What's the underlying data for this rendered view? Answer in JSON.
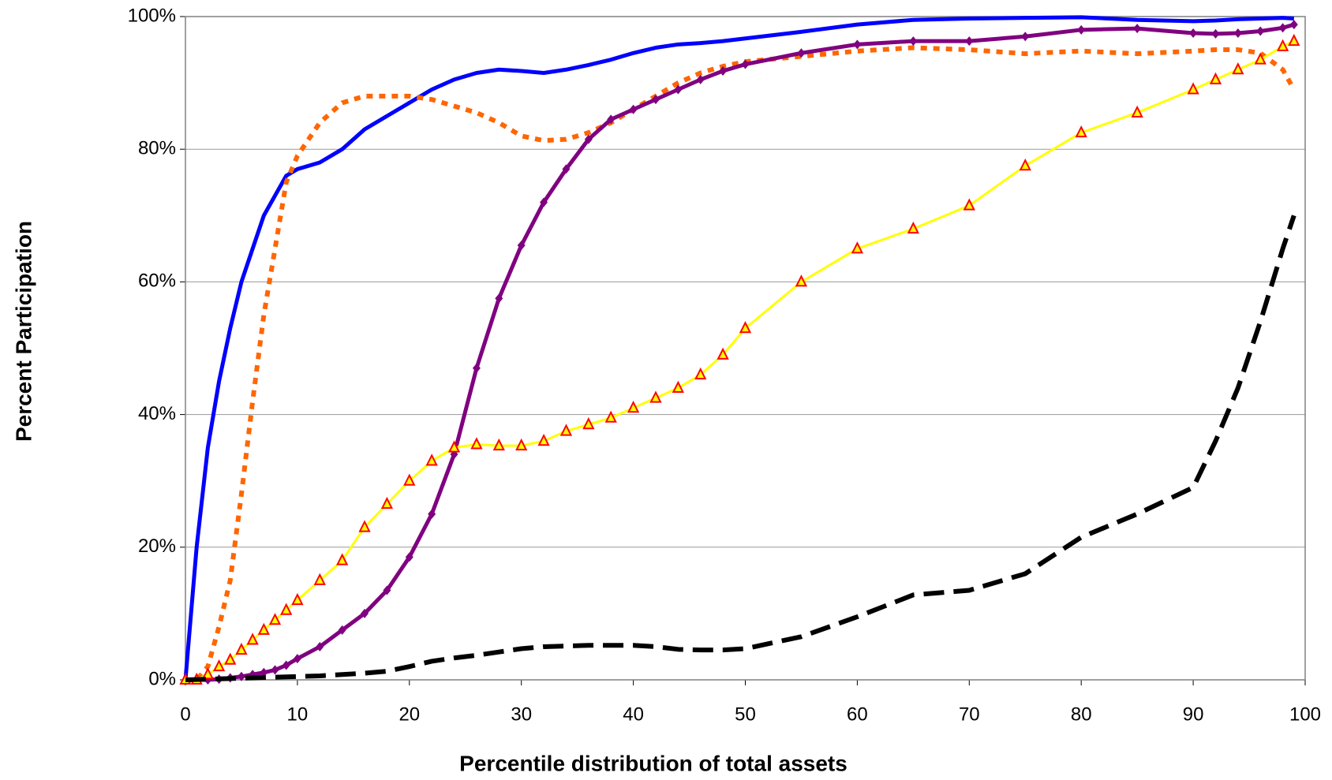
{
  "chart_data": {
    "type": "line",
    "x_label": "Percentile distribution of total assets",
    "y_label": "Percent Participation",
    "x": [
      0,
      1,
      2,
      3,
      4,
      5,
      6,
      7,
      8,
      9,
      10,
      12,
      14,
      16,
      18,
      20,
      22,
      24,
      26,
      28,
      30,
      32,
      34,
      36,
      38,
      40,
      42,
      44,
      46,
      48,
      50,
      55,
      60,
      65,
      70,
      75,
      80,
      85,
      90,
      92,
      94,
      96,
      98,
      99
    ],
    "series": [
      {
        "color": "#0000ff",
        "style": "solid",
        "values": [
          0,
          20,
          35,
          45,
          53,
          60,
          65,
          70,
          73,
          76,
          77,
          78,
          80,
          83,
          85,
          87,
          89,
          90.5,
          91.5,
          92,
          91.8,
          91.5,
          92,
          92.7,
          93.5,
          94.5,
          95.3,
          95.8,
          96,
          96.3,
          96.7,
          97.7,
          98.8,
          99.5,
          99.7,
          99.8,
          99.9,
          99.5,
          99.3,
          99.4,
          99.6,
          99.7,
          99.8,
          99.7
        ]
      },
      {
        "color": "#ff6600",
        "style": "dotted",
        "values": [
          0,
          0,
          2,
          8,
          15,
          28,
          42,
          55,
          65,
          75,
          79,
          84,
          87,
          88,
          88,
          88,
          87.5,
          86.5,
          85.5,
          84,
          82,
          81.3,
          81.5,
          82.5,
          84,
          86,
          88,
          90,
          91.5,
          92.5,
          93.2,
          94,
          94.8,
          95.3,
          95,
          94.4,
          94.8,
          94.4,
          94.8,
          95,
          95,
          94.5,
          92,
          89
        ]
      },
      {
        "color": "#800080",
        "style": "diamond",
        "values": [
          0,
          0,
          0,
          0.1,
          0.3,
          0.5,
          0.8,
          1.1,
          1.5,
          2.2,
          3.2,
          5,
          7.5,
          10,
          13.5,
          18.5,
          25,
          34,
          47,
          57.5,
          65.5,
          72,
          77,
          81.5,
          84.5,
          86,
          87.5,
          89,
          90.5,
          91.8,
          92.8,
          94.5,
          95.8,
          96.3,
          96.3,
          97,
          98,
          98.2,
          97.5,
          97.4,
          97.5,
          97.8,
          98.3,
          98.8
        ]
      },
      {
        "color": "#ffff00",
        "marker_color": "#ff0000",
        "style": "triangle",
        "values": [
          0,
          0,
          0.8,
          2,
          3,
          4.5,
          6,
          7.5,
          9,
          10.5,
          12,
          15,
          18,
          23,
          26.5,
          30,
          33,
          35,
          35.5,
          35.3,
          35.3,
          36,
          37.5,
          38.5,
          39.5,
          41,
          42.5,
          44,
          46,
          49,
          53,
          60,
          65,
          68,
          71.5,
          77.5,
          82.5,
          85.5,
          89,
          90.5,
          92,
          93.5,
          95.5,
          96.3
        ]
      },
      {
        "color": "#000000",
        "style": "dashed",
        "values": [
          0,
          0.05,
          0.1,
          0.15,
          0.2,
          0.25,
          0.3,
          0.35,
          0.4,
          0.45,
          0.5,
          0.6,
          0.8,
          1,
          1.3,
          2,
          2.8,
          3.3,
          3.7,
          4.2,
          4.7,
          5,
          5.1,
          5.2,
          5.2,
          5.2,
          5,
          4.6,
          4.5,
          4.5,
          4.7,
          6.5,
          9.5,
          12.8,
          13.5,
          16,
          21.5,
          25,
          29,
          36,
          44,
          54,
          65,
          70
        ]
      }
    ],
    "xlim": [
      0,
      100
    ],
    "xticks": [
      0,
      10,
      20,
      30,
      40,
      50,
      60,
      70,
      80,
      90,
      100
    ],
    "ylim": [
      0,
      100
    ],
    "yticks": [
      {
        "value": 0,
        "label": "0%"
      },
      {
        "value": 20,
        "label": "20%"
      },
      {
        "value": 40,
        "label": "40%"
      },
      {
        "value": 60,
        "label": "60%"
      },
      {
        "value": 80,
        "label": "80%"
      },
      {
        "value": 100,
        "label": "100%"
      }
    ],
    "grid": true
  }
}
